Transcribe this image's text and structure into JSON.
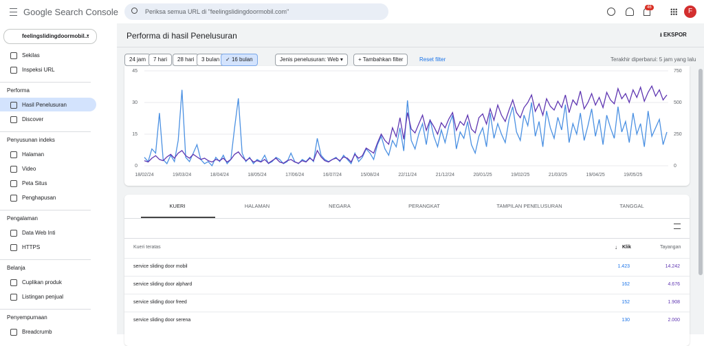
{
  "header": {
    "logo": "Google Search Console",
    "search_placeholder": "Periksa semua URL di \"feelingslidingdoormobil.com\"",
    "notification_count": "46",
    "avatar": "F"
  },
  "sidebar": {
    "property": "feelingslidingdoormobil...",
    "groups": [
      {
        "items": [
          {
            "label": "Sekilas"
          },
          {
            "label": "Inspeksi URL"
          }
        ]
      },
      {
        "title": "Performa",
        "items": [
          {
            "label": "Hasil Penelusuran",
            "selected": true
          },
          {
            "label": "Discover"
          }
        ]
      },
      {
        "title": "Penyusunan indeks",
        "items": [
          {
            "label": "Halaman"
          },
          {
            "label": "Video"
          },
          {
            "label": "Peta Situs"
          },
          {
            "label": "Penghapusan"
          }
        ]
      },
      {
        "title": "Pengalaman",
        "items": [
          {
            "label": "Data Web Inti"
          },
          {
            "label": "HTTPS"
          }
        ]
      },
      {
        "title": "Belanja",
        "items": [
          {
            "label": "Cuplikan produk"
          },
          {
            "label": "Listingan penjual"
          }
        ]
      },
      {
        "title": "Penyempurnaan",
        "items": [
          {
            "label": "Breadcrumb"
          }
        ]
      }
    ]
  },
  "page": {
    "title": "Performa di hasil Penelusuran",
    "export": "EKSPOR",
    "date_ranges": [
      "24 jam",
      "7 hari",
      "28 hari",
      "3 bulan",
      "16 bulan"
    ],
    "selected_range": 4,
    "search_type": "Jenis penelusuran: Web",
    "add_filter": "Tambahkan filter",
    "reset_filter": "Reset filter",
    "last_updated": "Terakhir diperbarui: 5 jam yang lalu"
  },
  "chart_data": {
    "type": "line",
    "categories": [
      "18/02/24",
      null,
      null,
      null,
      null,
      null,
      null,
      null,
      null,
      null,
      "19/03/24",
      null,
      null,
      null,
      null,
      null,
      null,
      null,
      null,
      null,
      "18/04/24",
      null,
      null,
      null,
      null,
      null,
      null,
      null,
      null,
      null,
      "18/05/24",
      null,
      null,
      null,
      null,
      null,
      null,
      null,
      null,
      null,
      "17/06/24",
      null,
      null,
      null,
      null,
      null,
      null,
      null,
      null,
      null,
      "16/07/24",
      null,
      null,
      null,
      null,
      null,
      null,
      null,
      null,
      null,
      "15/08/24",
      null,
      null,
      null,
      null,
      null,
      null,
      null,
      null,
      null,
      "22/11/24",
      null,
      null,
      null,
      null,
      null,
      null,
      null,
      null,
      null,
      "21/12/24",
      null,
      null,
      null,
      null,
      null,
      null,
      null,
      null,
      null,
      "20/01/25",
      null,
      null,
      null,
      null,
      null,
      null,
      null,
      null,
      null,
      "19/02/25",
      null,
      null,
      null,
      null,
      null,
      null,
      null,
      null,
      null,
      "21/03/25",
      null,
      null,
      null,
      null,
      null,
      null,
      null,
      null,
      null,
      "19/04/25",
      null,
      null,
      null,
      null,
      null,
      null,
      null,
      null,
      null,
      "19/05/25",
      null,
      null,
      null,
      null,
      null,
      null,
      null,
      null,
      null
    ],
    "series": [
      {
        "color": "#4a90e2",
        "values": [
          4,
          2,
          8,
          6,
          25,
          3,
          1,
          5,
          2,
          12,
          36,
          4,
          2,
          6,
          10,
          3,
          1,
          2,
          0,
          4,
          2,
          5,
          1,
          3,
          18,
          32,
          6,
          2,
          4,
          1,
          3,
          2,
          5,
          1,
          2,
          4,
          3,
          1,
          2,
          6,
          2,
          1,
          3,
          2,
          4,
          2,
          13,
          5,
          3,
          2,
          3,
          4,
          2,
          5,
          3,
          1,
          6,
          2,
          4,
          8,
          6,
          3,
          10,
          14,
          8,
          5,
          12,
          9,
          18,
          7,
          31,
          12,
          8,
          15,
          20,
          10,
          22,
          14,
          9,
          17,
          11,
          19,
          24,
          8,
          16,
          13,
          21,
          10,
          6,
          14,
          18,
          9,
          25,
          13,
          20,
          15,
          11,
          22,
          28,
          16,
          12,
          24,
          19,
          30,
          14,
          21,
          9,
          26,
          18,
          13,
          23,
          17,
          29,
          11,
          20,
          15,
          25,
          12,
          19,
          27,
          14,
          22,
          10,
          24,
          18,
          13,
          28,
          16,
          21,
          11,
          25,
          15,
          20,
          9,
          26,
          14,
          18,
          22,
          10,
          16
        ]
      },
      {
        "color": "#5e35b1",
        "axis": "y2",
        "values": [
          40,
          30,
          60,
          80,
          50,
          40,
          70,
          90,
          60,
          100,
          120,
          80,
          60,
          90,
          70,
          50,
          60,
          40,
          30,
          50,
          40,
          60,
          30,
          50,
          90,
          110,
          70,
          40,
          60,
          30,
          40,
          30,
          50,
          20,
          40,
          60,
          30,
          20,
          40,
          50,
          30,
          20,
          40,
          30,
          60,
          40,
          120,
          70,
          40,
          30,
          50,
          60,
          40,
          70,
          60,
          30,
          90,
          60,
          80,
          140,
          120,
          100,
          180,
          250,
          200,
          170,
          300,
          230,
          380,
          210,
          420,
          290,
          260,
          330,
          400,
          280,
          360,
          310,
          250,
          340,
          300,
          370,
          420,
          280,
          350,
          320,
          400,
          290,
          260,
          380,
          410,
          330,
          450,
          360,
          480,
          400,
          350,
          440,
          520,
          420,
          380,
          460,
          500,
          560,
          430,
          490,
          400,
          530,
          470,
          440,
          510,
          460,
          560,
          420,
          520,
          480,
          590,
          450,
          500,
          570,
          480,
          540,
          460,
          580,
          520,
          490,
          610,
          530,
          570,
          500,
          600,
          540,
          620,
          510,
          580,
          630,
          550,
          600,
          520,
          560
        ]
      }
    ],
    "ylim": [
      0,
      45
    ],
    "yticks": [
      0,
      15,
      30,
      45
    ],
    "y2lim": [
      0,
      750
    ],
    "y2ticks": [
      0,
      250,
      500,
      750
    ],
    "grid": true
  },
  "tabs": [
    "KUERI",
    "HALAMAN",
    "NEGARA",
    "PERANGKAT",
    "TAMPILAN PENELUSURAN",
    "TANGGAL"
  ],
  "selected_tab": 0,
  "table": {
    "columns": [
      "Kueri teratas",
      "Klik",
      "Tayangan"
    ],
    "rows": [
      [
        "service sliding door mobil",
        "1.423",
        "14.242"
      ],
      [
        "service sliding door alphard",
        "162",
        "4.676"
      ],
      [
        "service sliding door freed",
        "152",
        "1.908"
      ],
      [
        "service sliding door serena",
        "130",
        "2.000"
      ]
    ]
  }
}
